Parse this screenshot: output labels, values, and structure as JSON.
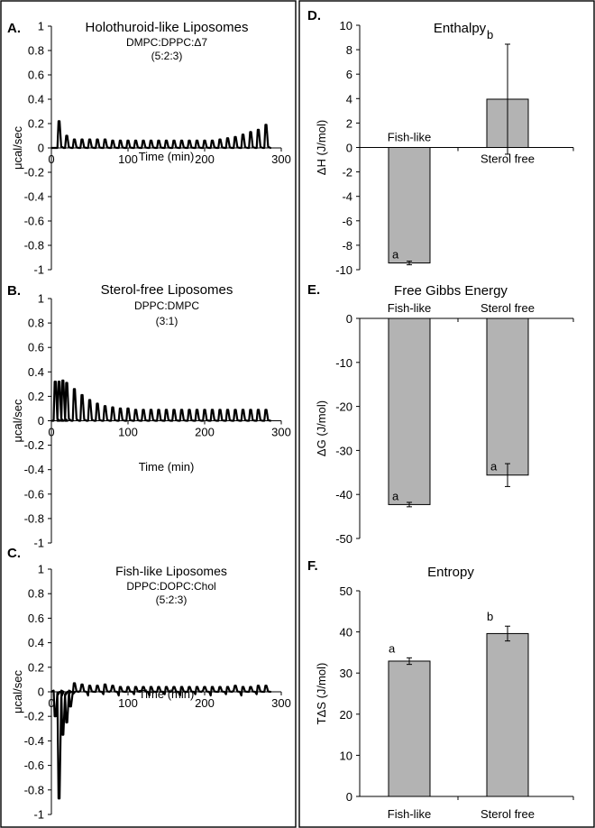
{
  "chart_data": [
    {
      "panel": "A.",
      "type": "line",
      "title": "Holothuroid-like Liposomes",
      "subtitle": "DMPC:DPPC:Δ7",
      "ratio": "(5:2:3)",
      "xlabel": "Time (min)",
      "ylabel": "μcal/sec",
      "xlim": [
        0,
        300
      ],
      "ylim": [
        -1,
        1
      ],
      "xticks": [
        "0",
        "100",
        "200",
        "300"
      ],
      "yticks": [
        "1",
        "0.8",
        "0.6",
        "0.4",
        "0.2",
        "0",
        "-0.2",
        "-0.4",
        "-0.6",
        "-0.8",
        "-1"
      ],
      "series": [
        {
          "x": [
            10,
            20,
            30,
            40,
            50,
            60,
            70,
            80,
            90,
            100,
            110,
            120,
            130,
            140,
            150,
            160,
            170,
            180,
            190,
            200,
            210,
            220,
            230,
            240,
            250,
            260,
            270,
            280
          ],
          "y": [
            0.22,
            0.1,
            0.07,
            0.07,
            0.07,
            0.07,
            0.07,
            0.06,
            0.06,
            0.06,
            0.06,
            0.06,
            0.06,
            0.06,
            0.06,
            0.06,
            0.06,
            0.06,
            0.06,
            0.06,
            0.06,
            0.07,
            0.08,
            0.09,
            0.11,
            0.13,
            0.15,
            0.19
          ]
        }
      ]
    },
    {
      "panel": "B.",
      "type": "line",
      "title": "Sterol-free Liposomes",
      "subtitle": "DPPC:DMPC",
      "ratio": "(3:1)",
      "xlabel": "Time (min)",
      "ylabel": "μcal/sec",
      "xlim": [
        0,
        300
      ],
      "ylim": [
        -1,
        1
      ],
      "xticks": [
        "0",
        "100",
        "200",
        "300"
      ],
      "yticks": [
        "1",
        "0.8",
        "0.6",
        "0.4",
        "0.2",
        "0",
        "-0.2",
        "-0.4",
        "-0.6",
        "-0.8",
        "-1"
      ],
      "series": [
        {
          "x": [
            5,
            10,
            15,
            20,
            30,
            40,
            50,
            60,
            70,
            80,
            90,
            100,
            110,
            120,
            130,
            140,
            150,
            160,
            170,
            180,
            190,
            200,
            210,
            220,
            230,
            240,
            250,
            260,
            270,
            280
          ],
          "y": [
            0.32,
            0.32,
            0.33,
            0.31,
            0.26,
            0.21,
            0.17,
            0.14,
            0.12,
            0.11,
            0.1,
            0.1,
            0.09,
            0.09,
            0.09,
            0.09,
            0.09,
            0.09,
            0.09,
            0.09,
            0.09,
            0.09,
            0.09,
            0.09,
            0.09,
            0.09,
            0.09,
            0.09,
            0.09,
            0.09
          ]
        }
      ]
    },
    {
      "panel": "C.",
      "type": "line",
      "title": "Fish-like Liposomes",
      "subtitle": "DPPC:DOPC:Chol",
      "ratio": "(5:2:3)",
      "xlabel": "Time (min)",
      "ylabel": "μcal/sec",
      "xlim": [
        0,
        300
      ],
      "ylim": [
        -1,
        1
      ],
      "xticks": [
        "0",
        "100",
        "200",
        "300"
      ],
      "yticks": [
        "1",
        "0.8",
        "0.6",
        "0.4",
        "0.2",
        "0",
        "-0.2",
        "-0.4",
        "-0.6",
        "-0.8",
        "-1"
      ],
      "series": [
        {
          "x": [
            5,
            10,
            15,
            20,
            25,
            30,
            40,
            50,
            60,
            70,
            80,
            90,
            100,
            110,
            120,
            130,
            140,
            150,
            160,
            170,
            180,
            190,
            200,
            210,
            220,
            230,
            240,
            250,
            260,
            270,
            280
          ],
          "y": [
            -0.2,
            -0.87,
            -0.35,
            -0.25,
            -0.12,
            0.07,
            0.06,
            0.05,
            0.05,
            0.06,
            0.05,
            0.04,
            0.04,
            0.04,
            0.04,
            0.04,
            0.04,
            0.04,
            0.04,
            0.04,
            0.04,
            0.04,
            0.04,
            0.04,
            0.04,
            0.04,
            0.05,
            0.04,
            0.04,
            0.05,
            0.05
          ],
          "baseline_noise": [
            0.01,
            -0.03,
            0.01,
            -0.03,
            0.01,
            -0.02,
            0.01,
            -0.03,
            0.0,
            -0.02,
            0.01,
            -0.03,
            0.0,
            -0.02,
            0.01,
            -0.03,
            0.0,
            -0.02,
            0.01,
            -0.03,
            0.0,
            -0.02,
            0.01,
            -0.03,
            0.0,
            -0.02,
            0.01,
            -0.03,
            0.0,
            -0.02,
            0.0
          ]
        }
      ]
    },
    {
      "panel": "D.",
      "type": "bar",
      "title": "Enthalpy",
      "ylabel": "ΔH (J/mol)",
      "ylim": [
        -10,
        10
      ],
      "yticks": [
        "10",
        "8",
        "6",
        "4",
        "2",
        "0",
        "-2",
        "-4",
        "-6",
        "-8",
        "-10"
      ],
      "categories": [
        "Fish-like",
        "Sterol free"
      ],
      "category_labels_position": "at-zero-line",
      "values": [
        -9.45,
        3.95
      ],
      "errors": [
        0.15,
        4.5
      ],
      "letters": [
        "a",
        "b"
      ]
    },
    {
      "panel": "E.",
      "type": "bar",
      "title": "Free Gibbs Energy",
      "ylabel": "ΔG (J/mol)",
      "ylim": [
        -50,
        0
      ],
      "yticks": [
        "0",
        "-10",
        "-20",
        "-30",
        "-40",
        "-50"
      ],
      "categories": [
        "Fish-like",
        "Sterol free"
      ],
      "category_labels_position": "at-zero-line",
      "values": [
        -42.3,
        -35.6
      ],
      "errors": [
        0.5,
        2.6
      ],
      "letters": [
        "a",
        "a"
      ]
    },
    {
      "panel": "F.",
      "type": "bar",
      "title": "Entropy",
      "ylabel": "TΔS (J/mol)",
      "ylim": [
        0,
        50
      ],
      "yticks": [
        "50",
        "40",
        "30",
        "20",
        "10",
        "0"
      ],
      "categories": [
        "Fish-like",
        "Sterol free"
      ],
      "category_labels_position": "below-axis",
      "values": [
        32.9,
        39.6
      ],
      "errors": [
        0.8,
        1.8
      ],
      "letters": [
        "a",
        "b"
      ]
    }
  ],
  "colors": {
    "bar_fill": "#b3b3b3",
    "bar_stroke": "#000000",
    "trace": "#000000",
    "frame": "#000000"
  }
}
